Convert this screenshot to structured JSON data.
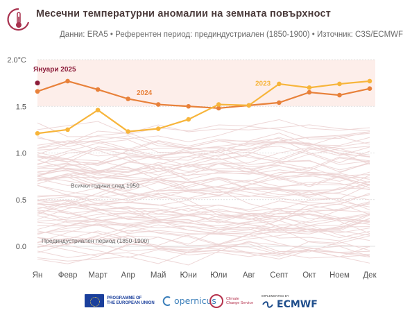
{
  "header": {
    "title": "Месечни температурни аномалии на земната повърхност",
    "subtitle": "Данни: ERA5 • Референтен период: прединдустриален (1850-1900) • Източник: C3S/ECMWF"
  },
  "footer": {
    "eu_label_1": "PROGRAMME OF",
    "eu_label_2": "THE EUROPEAN UNION",
    "copernicus": "opernicus",
    "c3s_label_1": "Climate",
    "c3s_label_2": "Change Service",
    "ecmwf_small": "IMPLEMENTED BY",
    "ecmwf": "ECMWF"
  },
  "colors": {
    "series_2024": "#e8813a",
    "series_2023": "#f7b53b",
    "jan_2025": "#8c1c3a",
    "background_lines": "#ecd3d3",
    "highlight_band": "#fdeeea",
    "text": "#555555"
  },
  "chart_data": {
    "type": "line",
    "categories": [
      "Ян",
      "Февр",
      "Март",
      "Апр",
      "Май",
      "Юни",
      "Юли",
      "Авг",
      "Септ",
      "Окт",
      "Ноем",
      "Дек"
    ],
    "ylim": [
      -0.15,
      2.0
    ],
    "yticks": [
      0.0,
      0.5,
      1.0,
      1.5,
      2.0
    ],
    "ytick_labels": [
      "0.0",
      "0.5",
      "1.0",
      "1.5",
      "2.0°C"
    ],
    "highlight_band": [
      1.5,
      2.0
    ],
    "series": [
      {
        "name": "2024",
        "color": "#e8813a",
        "values": [
          1.66,
          1.77,
          1.68,
          1.58,
          1.52,
          1.5,
          1.48,
          1.51,
          1.54,
          1.65,
          1.62,
          1.69
        ]
      },
      {
        "name": "2023",
        "color": "#f7b53b",
        "values": [
          1.21,
          1.25,
          1.46,
          1.23,
          1.26,
          1.36,
          1.52,
          1.51,
          1.74,
          1.7,
          1.74,
          1.77
        ]
      }
    ],
    "point": {
      "name": "Януари 2025",
      "x": "Ян",
      "y": 1.75,
      "color": "#8c1c3a"
    },
    "annotations": {
      "label_2024": "2024",
      "label_2023": "2023",
      "label_jan2025": "Януари 2025",
      "label_all_years": "Всички години след 1950",
      "label_preindustrial": "Прединдустриален период (1850-1900)"
    },
    "background_series_note": "Всички години след 1950"
  }
}
